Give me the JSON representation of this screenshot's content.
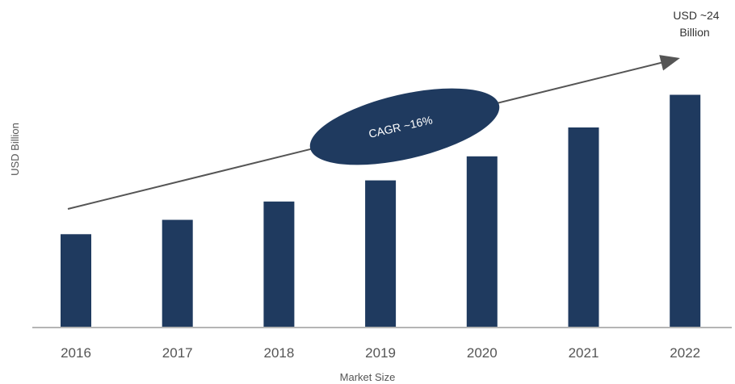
{
  "chart_data": {
    "type": "bar",
    "categories": [
      "2016",
      "2017",
      "2018",
      "2019",
      "2020",
      "2021",
      "2022"
    ],
    "values": [
      9.7,
      11.2,
      13.1,
      15.3,
      17.8,
      20.8,
      24.2
    ],
    "xlabel": "Market Size",
    "ylabel": "USD Billion",
    "ylim": [
      0,
      26
    ],
    "grid": false,
    "legend": "none",
    "bar_color": "#1f3a5f",
    "annotations": {
      "cagr_label": "CAGR ~16%",
      "end_value_line1": "USD ~24",
      "end_value_line2": "Billion"
    }
  },
  "colors": {
    "bar": "#1f3a5f",
    "axis": "#b5b5b5",
    "arrow": "#555555",
    "text": "#555555"
  }
}
